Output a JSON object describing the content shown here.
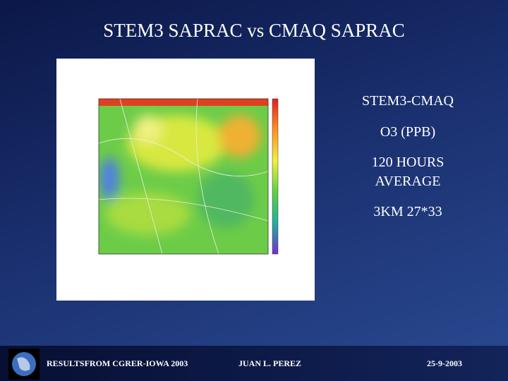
{
  "title": "STEM3 SAPRAC vs CMAQ SAPRAC",
  "side_text": [
    "STEM3-CMAQ",
    "O3 (PPB)",
    "120 HOURS",
    "AVERAGE",
    "3KM 27*33"
  ],
  "footer": {
    "left": "RESULTSFROM CGRER-IOWA 2003",
    "center": "JUAN L. PEREZ",
    "right": "25-9-2003"
  }
}
